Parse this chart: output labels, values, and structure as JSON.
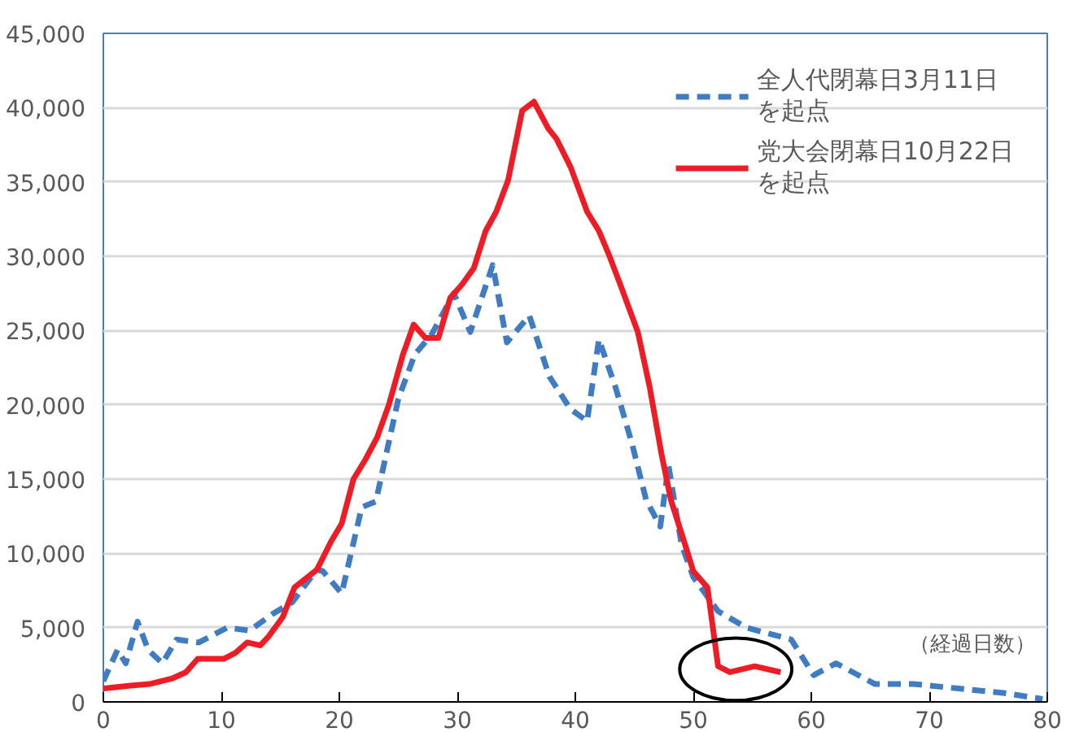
{
  "chart_data": {
    "type": "line",
    "xlabel": "（経過日数）",
    "xlim": [
      0,
      80
    ],
    "xticks": [
      0,
      10,
      20,
      30,
      40,
      50,
      60,
      70,
      80
    ],
    "ylim": [
      0,
      45000
    ],
    "yticks": [
      0,
      {
        "value": 5000,
        "label": "5,000"
      },
      {
        "value": 10000,
        "label": "10,000"
      },
      {
        "value": 15000,
        "label": "15,000"
      },
      {
        "value": 20000,
        "label": "20,000"
      },
      {
        "value": 25000,
        "label": "25,000"
      },
      {
        "value": 30000,
        "label": "30,000"
      },
      {
        "value": 35000,
        "label": "35,000"
      },
      {
        "value": 40000,
        "label": "40,000"
      },
      {
        "value": 45000,
        "label": "45,000"
      }
    ],
    "grid": "y",
    "legend": "top right",
    "series": [
      {
        "name": "全人代閉幕日3月11日を起点",
        "color": "#3f7cc3",
        "line_style": "dashed",
        "x": [
          0,
          1.2,
          1.9,
          2.9,
          3.8,
          5.0,
          6.2,
          8.1,
          10.5,
          12.4,
          14.3,
          16,
          18.1,
          18.6,
          20.2,
          21.9,
          23.1,
          25.0,
          26.4,
          27.8,
          29.7,
          31.1,
          33.0,
          34.2,
          36.1,
          37.8,
          39.6,
          41.0,
          42.0,
          43.4,
          44.8,
          46.0,
          47.2,
          47.9,
          49.0,
          50.0,
          52.1,
          54.5,
          58.3,
          60.2,
          62.1,
          65.4,
          68.7,
          72.5,
          76.3,
          79.6
        ],
        "values": [
          1400,
          3500,
          2600,
          5400,
          3500,
          2600,
          4200,
          4000,
          5000,
          4800,
          5900,
          6700,
          8900,
          8800,
          7300,
          13100,
          13500,
          20400,
          23400,
          24700,
          27500,
          24900,
          29400,
          24200,
          26000,
          21900,
          19700,
          18900,
          24400,
          21200,
          17400,
          13600,
          11800,
          15900,
          10600,
          8400,
          6100,
          5000,
          4200,
          1800,
          2600,
          1200,
          1200,
          900,
          600,
          200
        ]
      },
      {
        "name": "党大会閉幕日10月22日を起点",
        "color": "#ee1c25",
        "line_style": "solid",
        "x": [
          0,
          2.3,
          3.9,
          5.9,
          7.0,
          8.0,
          10.2,
          11.2,
          12.2,
          13.3,
          14.0,
          15.2,
          16.2,
          18.1,
          19.3,
          20.2,
          21.2,
          22.2,
          23.2,
          24.2,
          25.4,
          26.3,
          27.3,
          28.4,
          29.4,
          30.4,
          31.4,
          32.4,
          33.3,
          34.3,
          35.5,
          36.5,
          37.7,
          38.4,
          39.6,
          41.0,
          42.0,
          42.9,
          43.9,
          45.3,
          46.3,
          47.3,
          48.1,
          49.3,
          50.0,
          51.2,
          52.1,
          53.1,
          55.2,
          57.4
        ],
        "values": [
          900,
          1100,
          1200,
          1600,
          2000,
          2900,
          2900,
          3300,
          4000,
          3800,
          4400,
          5700,
          7700,
          8900,
          10800,
          12000,
          15000,
          16300,
          17800,
          20000,
          23400,
          25400,
          24500,
          24500,
          27200,
          28100,
          29200,
          31700,
          33000,
          35100,
          39800,
          40400,
          38600,
          37900,
          36000,
          33000,
          31700,
          30000,
          27900,
          24900,
          21200,
          16700,
          13600,
          10600,
          8800,
          7700,
          2400,
          2000,
          2400,
          2000
        ]
      }
    ]
  }
}
